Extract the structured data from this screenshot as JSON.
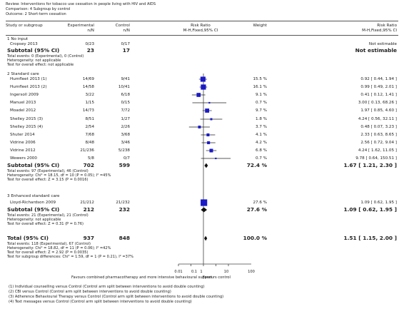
{
  "header": {
    "review": "Review:   Interventions for tobacco use cessation in people living with HIV and AIDS",
    "comparison": "Comparison:   4 Subgroup by control",
    "outcome": "Outcome:   2 Short-term cessation"
  },
  "columns": {
    "study": "Study or subgroup",
    "exp": "Experimental",
    "exp_unit": "n/N",
    "ctrl": "Control",
    "ctrl_unit": "n/N",
    "rr1": "Risk Ratio",
    "rr1_sub": "M-H,Fixed,95% CI",
    "weight": "Weight",
    "rr2": "Risk Ratio",
    "rr2_sub": "M-H,Fixed,95% CI"
  },
  "groups": [
    {
      "title": "1 No input",
      "studies": [
        {
          "name": "Cropsey 2013",
          "exp": "0/23",
          "ctrl": "0/17",
          "weight": "",
          "ci": "Not estimable"
        }
      ],
      "subtotal": {
        "label": "Subtotal (95% CI)",
        "exp": "23",
        "ctrl": "17",
        "weight": "",
        "ci": "Not estimable"
      },
      "notes": [
        "Total events: 0 (Experimental), 0 (Control)",
        "Heterogeneity: not applicable",
        "Test for overall effect: not applicable"
      ]
    },
    {
      "title": "2 Standard care",
      "studies": [
        {
          "name": "Humfleet 2013 (1)",
          "exp": "14/69",
          "ctrl": "9/41",
          "weight": "15.5 %",
          "ci": "0.92 [ 0.44, 1.94 ]"
        },
        {
          "name": "Humfleet 2013 (2)",
          "exp": "14/58",
          "ctrl": "10/41",
          "weight": "16.1 %",
          "ci": "0.99 [ 0.49, 2.01 ]"
        },
        {
          "name": "Ingersoll 2009",
          "exp": "3/22",
          "ctrl": "6/18",
          "weight": "9.1 %",
          "ci": "0.41 [ 0.12, 1.41 ]"
        },
        {
          "name": "Manuel 2013",
          "exp": "1/15",
          "ctrl": "0/15",
          "weight": "0.7 %",
          "ci": "3.00 [ 0.13, 68.26 ]"
        },
        {
          "name": "Moadel 2012",
          "exp": "14/73",
          "ctrl": "7/72",
          "weight": "9.7 %",
          "ci": "1.97 [ 0.85, 4.60 ]"
        },
        {
          "name": "Shelley 2015 (3)",
          "exp": "8/51",
          "ctrl": "1/27",
          "weight": "1.8 %",
          "ci": "4.24 [ 0.56, 32.11 ]"
        },
        {
          "name": "Shelley 2015 (4)",
          "exp": "2/54",
          "ctrl": "2/26",
          "weight": "3.7 %",
          "ci": "0.48 [ 0.07, 3.23 ]"
        },
        {
          "name": "Shuter 2014",
          "exp": "7/68",
          "ctrl": "3/68",
          "weight": "4.1 %",
          "ci": "2.33 [ 0.63, 8.65 ]"
        },
        {
          "name": "Vidrine 2006",
          "exp": "8/48",
          "ctrl": "3/46",
          "weight": "4.2 %",
          "ci": "2.56 [ 0.72, 9.04 ]"
        },
        {
          "name": "Vidrine 2012",
          "exp": "21/236",
          "ctrl": "5/238",
          "weight": "6.8 %",
          "ci": "4.24 [ 1.62, 11.05 ]"
        },
        {
          "name": "Wewers 2000",
          "exp": "5/8",
          "ctrl": "0/7",
          "weight": "0.7 %",
          "ci": "9.78 [ 0.64, 150.51 ]"
        }
      ],
      "subtotal": {
        "label": "Subtotal (95% CI)",
        "exp": "702",
        "ctrl": "599",
        "weight": "72.4 %",
        "ci": "1.67 [ 1.21, 2.30 ]"
      },
      "notes": [
        "Total events: 97 (Experimental), 46 (Control)",
        "Heterogeneity: Chi² = 18.15, df = 10 (P = 0.05); I² =45%",
        "Test for overall effect: Z = 3.15 (P = 0.0016)"
      ]
    },
    {
      "title": "3 Enhanced standard care",
      "studies": [
        {
          "name": "Lloyd-Richardson 2009",
          "exp": "21/212",
          "ctrl": "21/232",
          "weight": "27.6 %",
          "ci": "1.09 [ 0.62, 1.95 ]"
        }
      ],
      "subtotal": {
        "label": "Subtotal (95% CI)",
        "exp": "212",
        "ctrl": "232",
        "weight": "27.6 %",
        "ci": "1.09 [ 0.62, 1.95 ]"
      },
      "notes": [
        "Total events: 21 (Experimental), 21 (Control)",
        "Heterogeneity: not applicable",
        "Test for overall effect: Z = 0.31 (P = 0.76)"
      ]
    }
  ],
  "total": {
    "label": "Total (95% CI)",
    "exp": "937",
    "ctrl": "848",
    "weight": "100.0 %",
    "ci": "1.51 [ 1.15, 2.00 ]",
    "notes": [
      "Total events: 118 (Experimental), 67 (Control)",
      "Heterogeneity: Chi² = 18.82, df = 11 (P = 0.06); I² =42%",
      "Test for overall effect: Z = 2.92 (P = 0.0035)",
      "Test for subgroup differences: Chi² = 1.59, df = 1 (P = 0.21), I² =37%"
    ]
  },
  "favours": {
    "left": "Favours combined pharmacotherapy and more intensive behavioural support",
    "right": "Favours control"
  },
  "footnotes": [
    "(1) Individual counselling versus Control (Control arm split between interventions to avoid double counting)",
    "(2) CBI versus Control (Control arm split between interventions to avoid double counting)",
    "(3) Adherence Behavioural Therapy versus Control (Control arm split between interventions to avoid double counting)",
    "(4) Text messages versus Control (Control arm split between interventions to avoid double counting)"
  ],
  "chart_data": {
    "type": "scatter",
    "x_scale": "log",
    "xlim": [
      0.01,
      100
    ],
    "x_ticks": [
      "0.01",
      "0.1",
      "1",
      "10",
      "100"
    ],
    "reference_line": 1,
    "studies": [
      {
        "name": "Humfleet 2013 (1)",
        "rr": 0.92,
        "lo": 0.44,
        "hi": 1.94,
        "weight": 15.5
      },
      {
        "name": "Humfleet 2013 (2)",
        "rr": 0.99,
        "lo": 0.49,
        "hi": 2.01,
        "weight": 16.1
      },
      {
        "name": "Ingersoll 2009",
        "rr": 0.41,
        "lo": 0.12,
        "hi": 1.41,
        "weight": 9.1
      },
      {
        "name": "Manuel 2013",
        "rr": 3.0,
        "lo": 0.13,
        "hi": 68.26,
        "weight": 0.7
      },
      {
        "name": "Moadel 2012",
        "rr": 1.97,
        "lo": 0.85,
        "hi": 4.6,
        "weight": 9.7
      },
      {
        "name": "Shelley 2015 (3)",
        "rr": 4.24,
        "lo": 0.56,
        "hi": 32.11,
        "weight": 1.8
      },
      {
        "name": "Shelley 2015 (4)",
        "rr": 0.48,
        "lo": 0.07,
        "hi": 3.23,
        "weight": 3.7
      },
      {
        "name": "Shuter 2014",
        "rr": 2.33,
        "lo": 0.63,
        "hi": 8.65,
        "weight": 4.1
      },
      {
        "name": "Vidrine 2006",
        "rr": 2.56,
        "lo": 0.72,
        "hi": 9.04,
        "weight": 4.2
      },
      {
        "name": "Vidrine 2012",
        "rr": 4.24,
        "lo": 1.62,
        "hi": 11.05,
        "weight": 6.8
      },
      {
        "name": "Wewers 2000",
        "rr": 9.78,
        "lo": 0.64,
        "hi": 150.51,
        "weight": 0.7
      },
      {
        "name": "Lloyd-Richardson 2009",
        "rr": 1.09,
        "lo": 0.62,
        "hi": 1.95,
        "weight": 27.6
      }
    ],
    "summaries": [
      {
        "name": "Subtotal 2 Standard care",
        "rr": 1.67,
        "lo": 1.21,
        "hi": 2.3
      },
      {
        "name": "Subtotal 3 Enhanced standard care",
        "rr": 1.09,
        "lo": 0.62,
        "hi": 1.95
      },
      {
        "name": "Total",
        "rr": 1.51,
        "lo": 1.15,
        "hi": 2.0
      }
    ]
  }
}
